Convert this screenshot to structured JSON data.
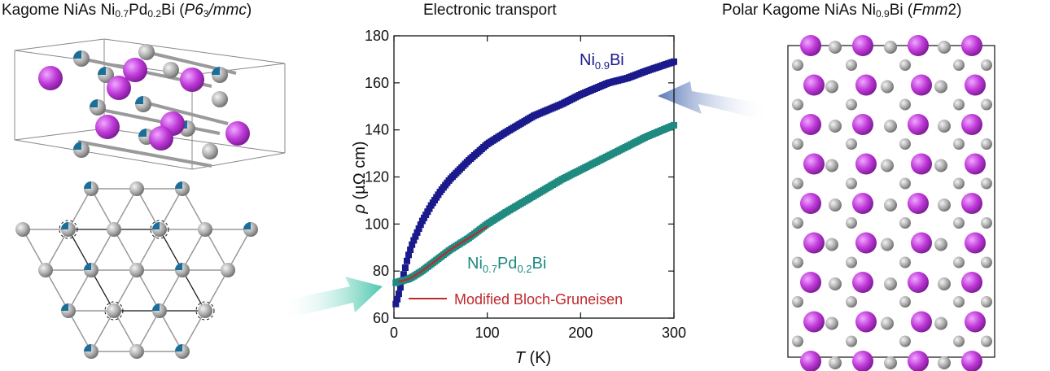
{
  "panels": {
    "left_title": {
      "pre": "Kagome NiAs Ni",
      "s1": "0.7",
      "mid": "Pd",
      "s2": "0.2",
      "post": "Bi (",
      "sg": "P6",
      "sg_sub": "3",
      "sg2": "/mmc",
      "close": ")"
    },
    "middle_title": "Electronic transport",
    "right_title": {
      "pre": "Polar Kagome NiAs Ni",
      "s1": "0.9",
      "post": "Bi (",
      "sg": "Fmm",
      "sg2": "2",
      "close": ")"
    }
  },
  "colors": {
    "bi_atom": "#c03ad9",
    "ni_atom": "#a9a9a9",
    "pd_fraction": "#1a6f9a",
    "ni09bi_curve": "#1a1a8c",
    "ni07pd02bi_curve": "#1e8a80",
    "fit_line": "#c0282c",
    "arrow_left": "#6fd3c0",
    "arrow_right": "#8fa6cf"
  },
  "chart_data": {
    "type": "line",
    "xlabel": {
      "italic": "T",
      "rest": " (K)"
    },
    "ylabel": {
      "italic": "ρ",
      "rest": " (µΩ cm)"
    },
    "xlim": [
      0,
      300
    ],
    "ylim": [
      60,
      180
    ],
    "xticks": [
      "0",
      "100",
      "200",
      "300"
    ],
    "yticks": [
      "60",
      "80",
      "100",
      "120",
      "140",
      "160",
      "180"
    ],
    "series": [
      {
        "name": "Ni0.9Bi",
        "label_main": "Ni",
        "label_sub": "0.9",
        "label_end": "Bi",
        "x": [
          2,
          5,
          10,
          15,
          20,
          30,
          40,
          50,
          60,
          80,
          100,
          120,
          150,
          180,
          200,
          230,
          250,
          270,
          300
        ],
        "y": [
          66,
          70,
          78,
          86,
          92,
          101,
          108,
          114,
          119,
          127,
          134,
          139,
          146,
          151,
          155,
          160,
          162,
          165,
          169
        ]
      },
      {
        "name": "Ni0.7Pd0.2Bi",
        "label_main": "Ni",
        "label_sub": "0.7",
        "label_mid": "Pd",
        "label_sub2": "0.2",
        "label_end": "Bi",
        "x": [
          2,
          5,
          10,
          15,
          20,
          30,
          40,
          50,
          60,
          80,
          100,
          120,
          150,
          180,
          200,
          230,
          250,
          270,
          300
        ],
        "y": [
          75,
          75.5,
          76,
          76.5,
          77.5,
          80,
          83,
          86,
          89,
          94,
          100,
          105,
          112,
          119,
          123,
          129,
          133,
          137,
          142
        ]
      }
    ],
    "fit": {
      "name": "Modified Bloch-Gruneisen",
      "x": [
        5,
        10,
        15,
        20,
        30,
        40,
        50,
        60,
        70,
        80,
        90,
        100
      ],
      "y": [
        75.5,
        76,
        76.5,
        77.5,
        80,
        83,
        86,
        89,
        91.5,
        94,
        96.5,
        99
      ]
    },
    "legend_placement": "bottom"
  }
}
